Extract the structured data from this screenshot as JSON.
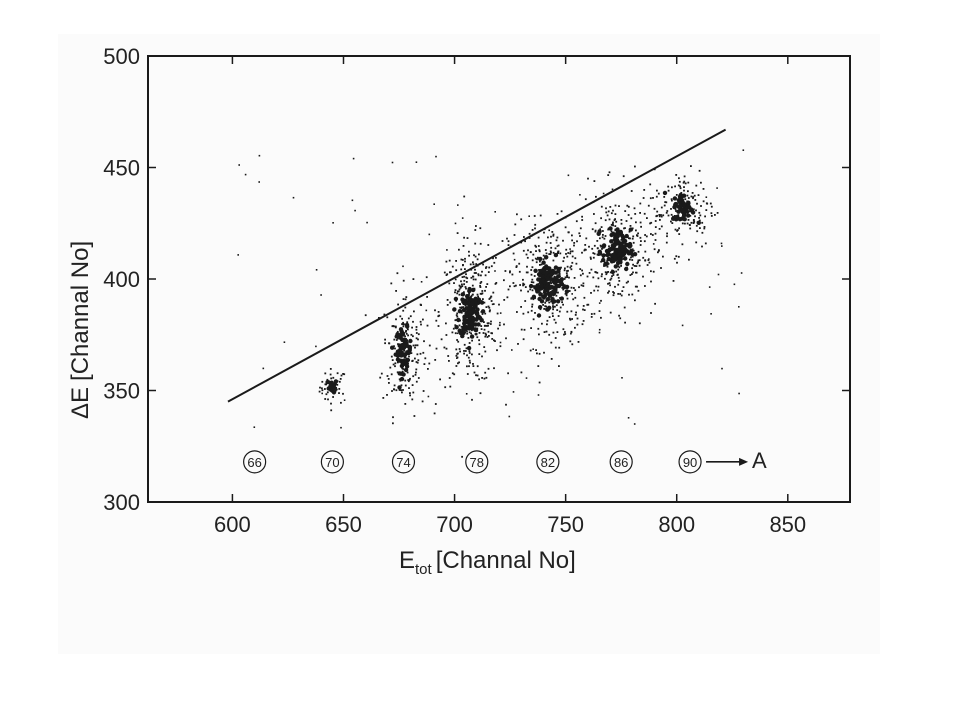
{
  "colors": {
    "ink": "#1a1a1a",
    "paper": "#fbfbfb"
  },
  "chart_data": {
    "type": "scatter",
    "xlabel_main": "E",
    "xlabel_sub": "tot",
    "xlabel_rest": "[Channal No]",
    "ylabel_main": "ΔE",
    "ylabel_rest": "[Channal No]",
    "xlim": [
      562,
      878
    ],
    "ylim": [
      300,
      500
    ],
    "xticks": [
      600,
      650,
      700,
      750,
      800,
      850
    ],
    "yticks": [
      300,
      350,
      400,
      450,
      500
    ],
    "grid": false,
    "separator_line": {
      "x": [
        598,
        822
      ],
      "y": [
        345,
        467
      ]
    },
    "mass_labels": [
      {
        "label": "66",
        "x": 610,
        "y": 318
      },
      {
        "label": "70",
        "x": 645,
        "y": 318
      },
      {
        "label": "74",
        "x": 677,
        "y": 318
      },
      {
        "label": "78",
        "x": 710,
        "y": 318
      },
      {
        "label": "82",
        "x": 742,
        "y": 318
      },
      {
        "label": "86",
        "x": 775,
        "y": 318
      },
      {
        "label": "90",
        "x": 806,
        "y": 318
      }
    ],
    "mass_axis_label": "A",
    "clusters": [
      {
        "x": 645,
        "y": 352,
        "sx": 3,
        "sy": 4,
        "n": 45
      },
      {
        "x": 677,
        "y": 368,
        "sx": 5,
        "sy": 14,
        "n": 180
      },
      {
        "x": 707,
        "y": 385,
        "sx": 7,
        "sy": 16,
        "n": 340
      },
      {
        "x": 742,
        "y": 398,
        "sx": 9,
        "sy": 14,
        "n": 360
      },
      {
        "x": 773,
        "y": 413,
        "sx": 9,
        "sy": 13,
        "n": 300
      },
      {
        "x": 803,
        "y": 432,
        "sx": 7,
        "sy": 9,
        "n": 150
      }
    ]
  }
}
